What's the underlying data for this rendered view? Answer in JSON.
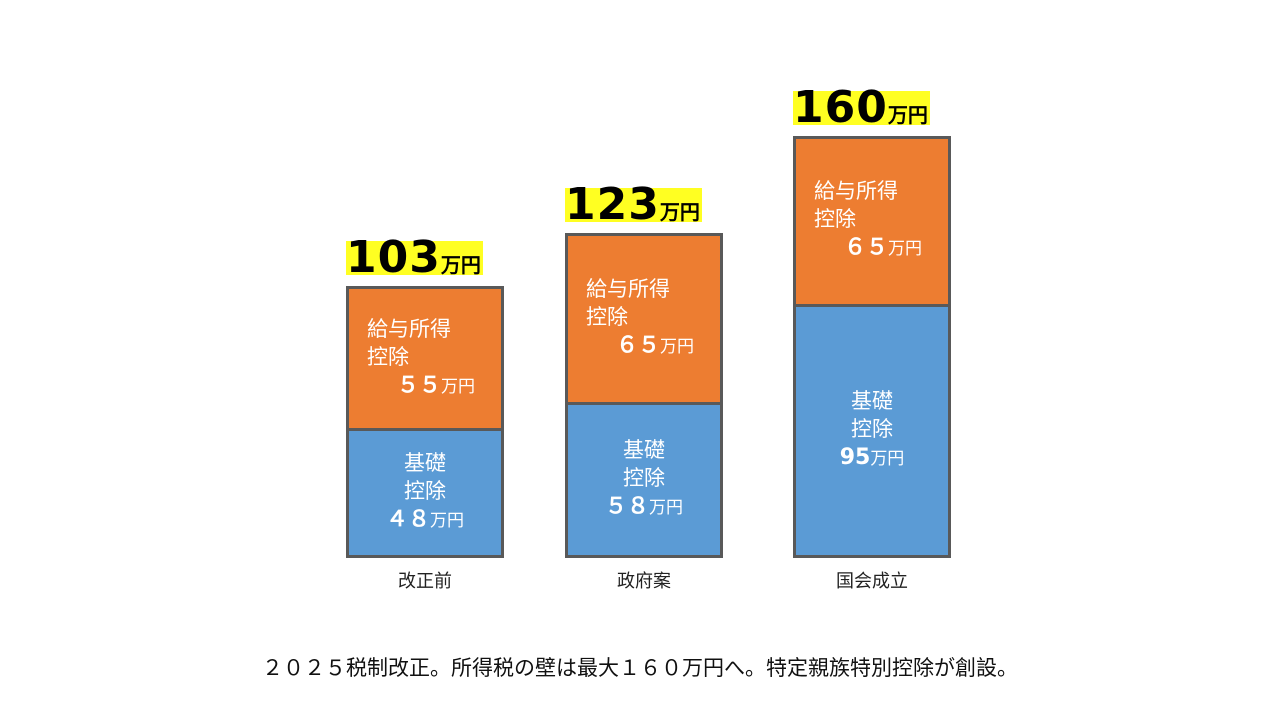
{
  "chart_data": {
    "type": "bar",
    "stacked": true,
    "categories": [
      "改正前",
      "政府案",
      "国会成立"
    ],
    "series": [
      {
        "name": "基礎控除",
        "values": [
          48,
          58,
          95
        ],
        "color": "#5b9bd5"
      },
      {
        "name": "給与所得控除",
        "values": [
          55,
          65,
          65
        ],
        "color": "#ed7d31"
      }
    ],
    "segment_labels": {
      "basic": "基礎\n控除",
      "salary": "給与所得\n控除"
    },
    "value_labels": {
      "basic": [
        "４８",
        "５８",
        "95"
      ],
      "salary": [
        "５５",
        "６５",
        "６５"
      ]
    },
    "totals": [
      "103",
      "123",
      "160"
    ],
    "unit": "万円",
    "total_highlight_color": "#ffff22",
    "border_color": "#595959",
    "title": "",
    "xlabel": "",
    "ylabel": "",
    "grid": false
  },
  "caption": "２０２５税制改正。所得税の壁は最大１６０万円へ。特定親族特別控除が創設。"
}
